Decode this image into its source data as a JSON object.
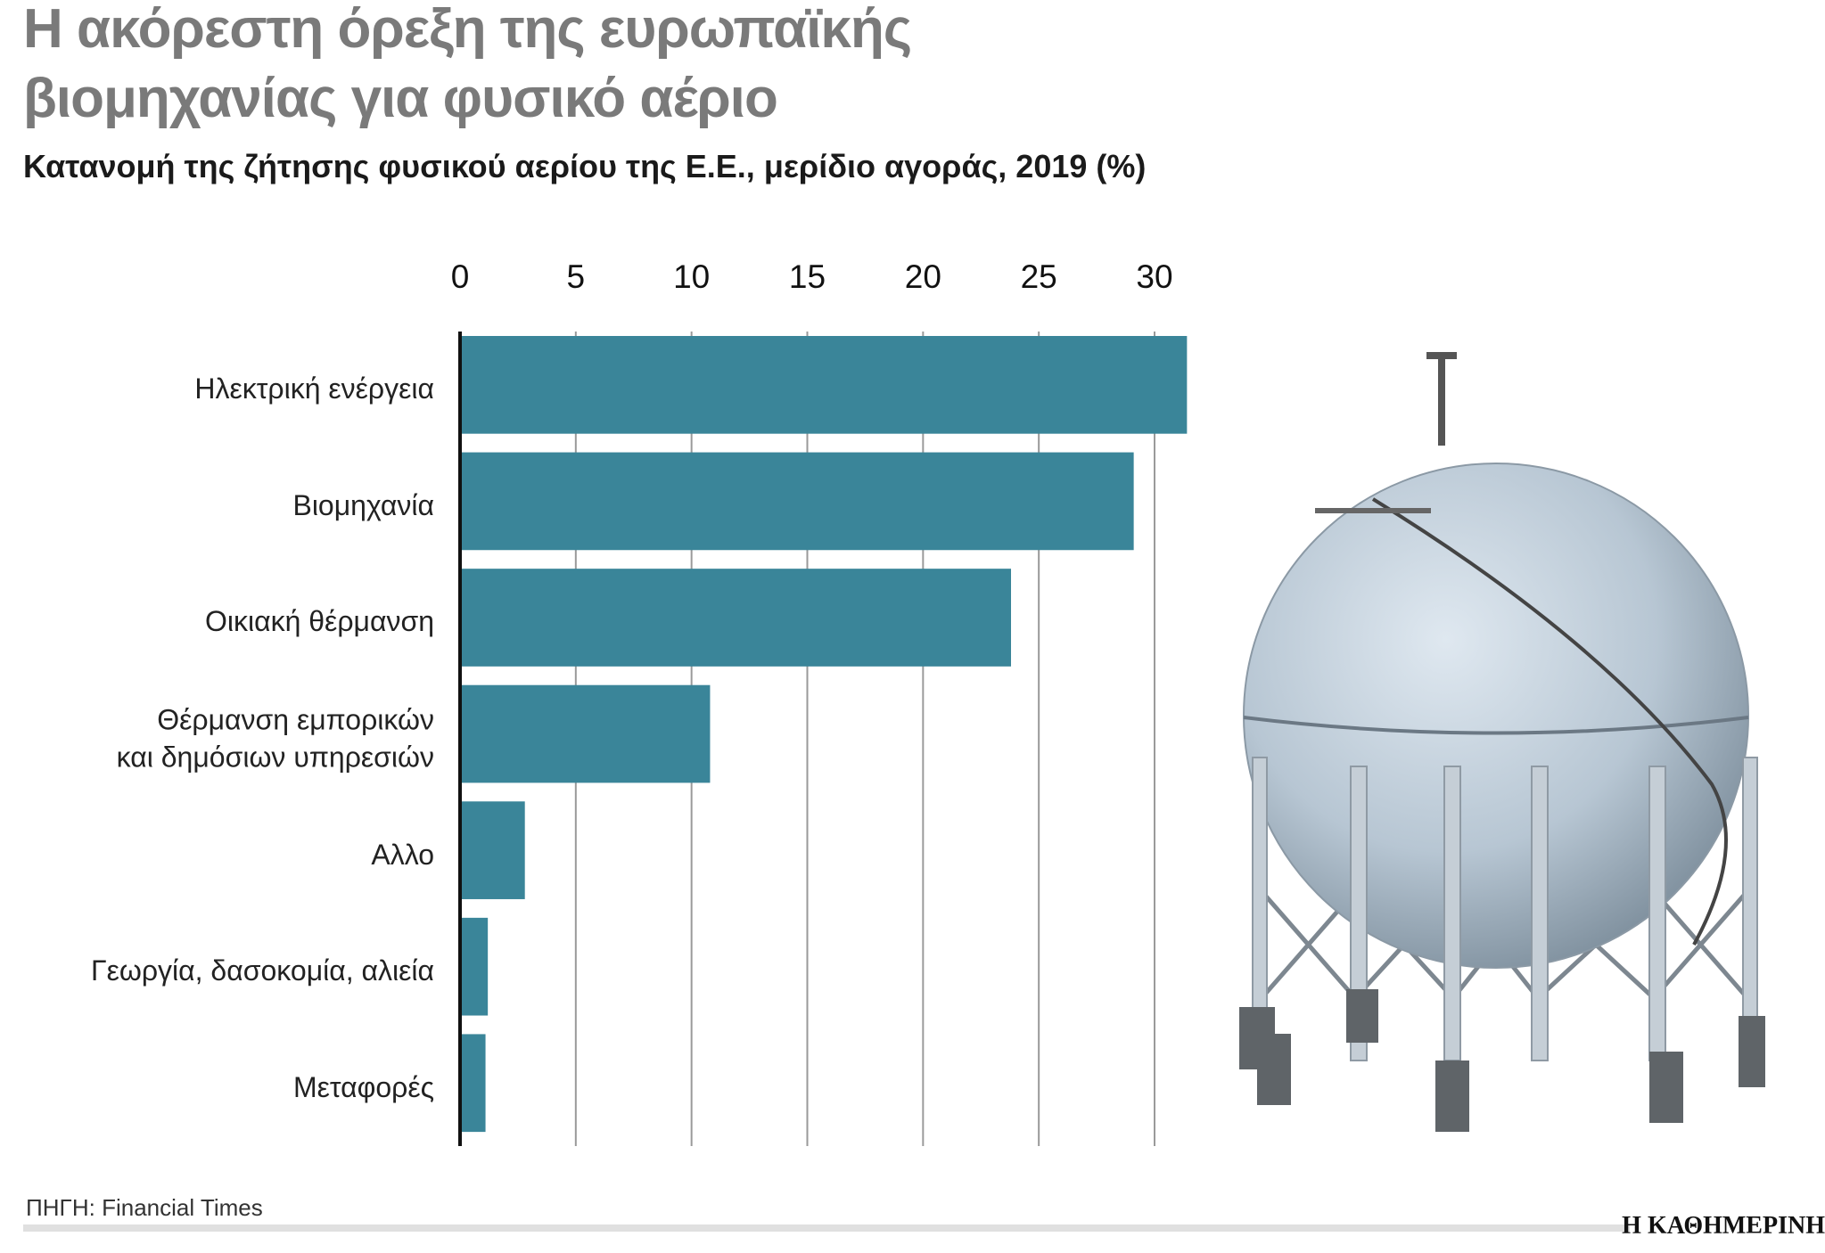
{
  "chart_data": {
    "type": "bar",
    "orientation": "horizontal",
    "title": [
      "Η ακόρεστη όρεξη της ευρωπαϊκής",
      "βιομηχανίας για φυσικό αέριο"
    ],
    "subtitle": "Κατανομή της ζήτησης φυσικού αερίου της Ε.Ε., μερίδιο αγοράς, 2019 (%)",
    "categories": [
      "Ηλεκτρική ενέργεια",
      "Βιομηχανία",
      "Οικιακή θέρμανση",
      "Θέρμανση εμπορικών\nκαι δημόσιων υπηρεσιών",
      "Αλλο",
      "Γεωργία, δασοκομία, αλιεία",
      "Μεταφορές"
    ],
    "values": [
      31.4,
      29.1,
      23.8,
      10.8,
      2.8,
      1.2,
      1.1
    ],
    "color": "#3a8599",
    "xlim": [
      0,
      32
    ],
    "xticks": [
      0,
      5,
      10,
      15,
      20,
      25,
      30
    ],
    "grid": true,
    "source": "ΠΗΓΗ: Financial Times",
    "publisher": "Η ΚΑΘΗΜΕΡΙΝΗ"
  }
}
